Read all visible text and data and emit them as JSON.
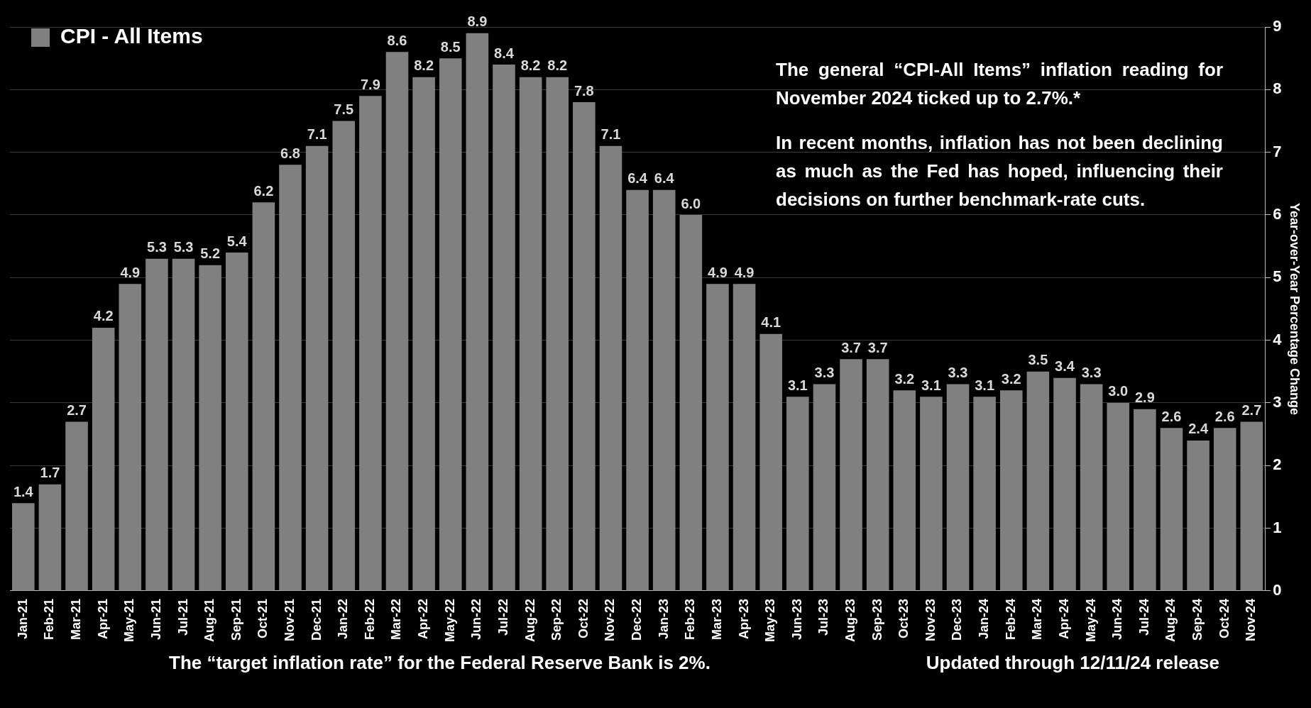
{
  "chart_data": {
    "type": "bar",
    "categories": [
      "Jan-21",
      "Feb-21",
      "Mar-21",
      "Apr-21",
      "May-21",
      "Jun-21",
      "Jul-21",
      "Aug-21",
      "Sep-21",
      "Oct-21",
      "Nov-21",
      "Dec-21",
      "Jan-22",
      "Feb-22",
      "Mar-22",
      "Apr-22",
      "May-22",
      "Jun-22",
      "Jul-22",
      "Aug-22",
      "Sep-22",
      "Oct-22",
      "Nov-22",
      "Dec-22",
      "Jan-23",
      "Feb-23",
      "Mar-23",
      "Apr-23",
      "May-23",
      "Jun-23",
      "Jul-23",
      "Aug-23",
      "Sep-23",
      "Oct-23",
      "Nov-23",
      "Dec-23",
      "Jan-24",
      "Feb-24",
      "Mar-24",
      "Apr-24",
      "May-24",
      "Jun-24",
      "Jul-24",
      "Aug-24",
      "Sep-24",
      "Oct-24",
      "Nov-24"
    ],
    "series": [
      {
        "name": "CPI - All Items",
        "color": "#808080",
        "values": [
          1.4,
          1.7,
          2.7,
          4.2,
          4.9,
          5.3,
          5.3,
          5.2,
          5.4,
          6.2,
          6.8,
          7.1,
          7.5,
          7.9,
          8.6,
          8.2,
          8.5,
          8.9,
          8.4,
          8.2,
          8.2,
          7.8,
          7.1,
          6.4,
          6.4,
          6.0,
          4.9,
          4.9,
          4.1,
          3.1,
          3.3,
          3.7,
          3.7,
          3.2,
          3.1,
          3.3,
          3.1,
          3.2,
          3.5,
          3.4,
          3.3,
          3.0,
          2.9,
          2.6,
          2.4,
          2.6,
          2.7
        ],
        "value_labels": [
          "1.4",
          "1.7",
          "2.7",
          "4.2",
          "4.9",
          "5.3",
          "5.3",
          "5.2",
          "5.4",
          "6.2",
          "6.8",
          "7.1",
          "7.5",
          "7.9",
          "8.6",
          "8.2",
          "8.5",
          "8.9",
          "8.4",
          "8.2",
          "8.2",
          "7.8",
          "7.1",
          "6.4",
          "6.4",
          "6.0",
          "4.9",
          "4.9",
          "4.1",
          "3.1",
          "3.3",
          "3.7",
          "3.7",
          "3.2",
          "3.1",
          "3.3",
          "3.1",
          "3.2",
          "3.5",
          "3.4",
          "3.3",
          "3.0",
          "2.9",
          "2.6",
          "2.4",
          "2.6",
          "2.7"
        ]
      }
    ],
    "ylabel": "Year-over-Year Percentage Change",
    "ylim": [
      0,
      9
    ],
    "yticks": [
      0,
      1,
      2,
      3,
      4,
      5,
      6,
      7,
      8,
      9
    ],
    "grid": "y",
    "legend": "top left",
    "annotations": [
      "The general “CPI-All Items” inflation reading for November 2024 ticked up to 2.7%.*",
      "In recent months, inflation has not been declining as much as the Fed has hoped, influencing their decisions on further benchmark-rate cuts.",
      "The “target inflation rate” for the Federal Reserve Bank is 2%.",
      "Updated through 12/11/24 release"
    ]
  }
}
